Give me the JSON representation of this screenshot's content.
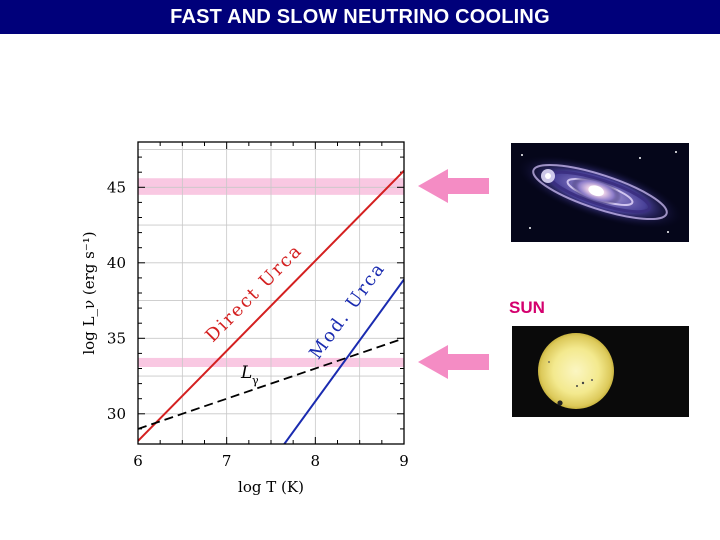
{
  "title": "FAST AND SLOW NEUTRINO COOLING",
  "sun_label": "SUN",
  "colors": {
    "title_bar": "#00007a",
    "title_text": "#ffffff",
    "band": "#f9c8e2",
    "arrow": "#f48cc4",
    "direct_urca": "#d42020",
    "mod_urca": "#1a2bb0",
    "photon": "#000000",
    "sun_label": "#d4006e"
  },
  "icons": {
    "galaxy": "galaxy-photo",
    "sun": "sun-photo",
    "arrows": "left-arrow-icon"
  },
  "chart_data": {
    "type": "line",
    "xlabel": "log T (K)",
    "ylabel": "log L_ν (erg s⁻¹)",
    "xlim": [
      6,
      9
    ],
    "ylim": [
      28,
      48
    ],
    "x_ticks": [
      "6",
      "7",
      "8",
      "9"
    ],
    "y_ticks": [
      "30",
      "35",
      "40",
      "45"
    ],
    "grid": true,
    "series": [
      {
        "name": "Direct Urca",
        "x": [
          6.0,
          9.0
        ],
        "y": [
          28.2,
          46.1
        ],
        "style": "solid",
        "color": "#d42020"
      },
      {
        "name": "Mod. Urca",
        "x": [
          7.65,
          9.0
        ],
        "y": [
          28.0,
          38.9
        ],
        "style": "solid",
        "color": "#1a2bb0"
      },
      {
        "name": "L_γ",
        "x": [
          6.0,
          9.0
        ],
        "y": [
          29.0,
          35.0
        ],
        "style": "dashed",
        "color": "#000000"
      }
    ],
    "bands": [
      {
        "y": [
          44.5,
          45.6
        ]
      },
      {
        "y": [
          33.1,
          33.7
        ]
      }
    ],
    "labels": {
      "direct": "Direct Urca",
      "mod": "Mod. Urca",
      "photon": "L",
      "photon_sub": "γ"
    }
  }
}
